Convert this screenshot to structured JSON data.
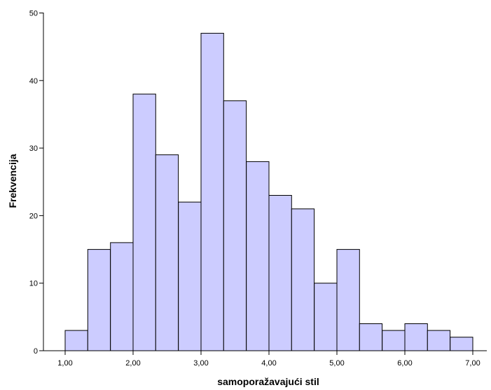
{
  "chart_data": {
    "type": "bar",
    "title": "",
    "xlabel": "samoporažavajući stil",
    "ylabel": "Frekvencija",
    "bin_width": 0.3333,
    "bin_start": 1.0,
    "values": [
      3,
      15,
      16,
      38,
      29,
      22,
      47,
      37,
      28,
      23,
      21,
      10,
      15,
      4,
      3,
      4,
      3,
      2
    ],
    "xlim": [
      1.0,
      7.0
    ],
    "ylim": [
      0,
      50
    ],
    "x_ticks": [
      1,
      2,
      3,
      4,
      5,
      6,
      7
    ],
    "x_tick_labels": [
      "1,00",
      "2,00",
      "3,00",
      "4,00",
      "5,00",
      "6,00",
      "7,00"
    ],
    "y_ticks": [
      0,
      10,
      20,
      30,
      40,
      50
    ],
    "y_tick_labels": [
      "0",
      "10",
      "20",
      "30",
      "40",
      "50"
    ],
    "bar_color": "#ccccff",
    "edge_color": "#000000",
    "grid": false,
    "legend": "none"
  }
}
